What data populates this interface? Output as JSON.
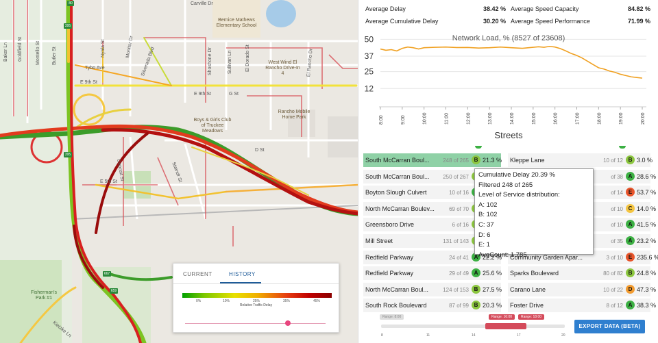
{
  "summary": {
    "average_delay_label": "Average Delay",
    "average_delay_value": "38.42 %",
    "average_cumulative_delay_label": "Average Cumulative Delay",
    "average_cumulative_delay_value": "30.20 %",
    "average_speed_capacity_label": "Average Speed Capacity",
    "average_speed_capacity_value": "84.82 %",
    "average_speed_performance_label": "Average Speed Performance",
    "average_speed_performance_value": "71.99 %"
  },
  "chart_data": {
    "type": "line",
    "title": "Network Load, % (8527 of 23608)",
    "y_ticks": [
      "50",
      "37",
      "25",
      "12"
    ],
    "ylim": [
      0,
      56
    ],
    "x_ticks": [
      "8:00",
      "9:00",
      "10:00",
      "11:00",
      "12:00",
      "13:00",
      "14:00",
      "15:00",
      "16:00",
      "17:00",
      "18:00",
      "19:00",
      "20:00"
    ],
    "series": [
      {
        "color": "#f0a020",
        "x": [
          8.0,
          8.25,
          8.5,
          8.75,
          9.0,
          9.25,
          9.5,
          9.75,
          10.0,
          10.5,
          11.0,
          11.5,
          12.0,
          12.5,
          13.0,
          13.5,
          14.0,
          14.5,
          15.0,
          15.25,
          15.5,
          15.75,
          16.0,
          16.25,
          16.5,
          16.75,
          17.0,
          17.25,
          17.5,
          17.75,
          18.0,
          18.25,
          18.5,
          18.75,
          19.0,
          19.25,
          19.5,
          19.75,
          20.0
        ],
        "values": [
          42.5,
          41.5,
          42.0,
          41.0,
          43.0,
          44.0,
          43.5,
          42.5,
          43.5,
          43.8,
          44.0,
          43.6,
          43.7,
          43.2,
          43.5,
          44.0,
          43.5,
          43.0,
          43.8,
          44.2,
          43.8,
          44.5,
          44.0,
          42.8,
          41.0,
          39.0,
          37.5,
          35.5,
          33.0,
          30.5,
          28.0,
          27.0,
          25.5,
          24.5,
          23.0,
          22.0,
          21.0,
          20.5,
          20.0
        ]
      }
    ]
  },
  "streets": {
    "title": "Streets",
    "left": [
      {
        "name": "South McCarran Boul...",
        "count": "248 of 265",
        "los": "B",
        "pct": "21.3 %"
      },
      {
        "name": "South McCarran Boul...",
        "count": "250 of 267",
        "los": "B",
        "pct": "21."
      },
      {
        "name": "Boyton Slough Culvert",
        "count": "10 of 16",
        "los": "A",
        "pct": "6."
      },
      {
        "name": "North McCarran Boulev...",
        "count": "69 of 70",
        "los": "B",
        "pct": "31."
      },
      {
        "name": "Greensboro Drive",
        "count": "6 of 16",
        "los": "B",
        "pct": "28."
      },
      {
        "name": "Mill Street",
        "count": "131 of 143",
        "los": "B",
        "pct": "28."
      },
      {
        "name": "Redfield Parkway",
        "count": "24 of 41",
        "los": "A",
        "pct": "22.2 %"
      },
      {
        "name": "Redfield Parkway",
        "count": "29 of 49",
        "los": "A",
        "pct": "25.6 %"
      },
      {
        "name": "North McCarran Boul...",
        "count": "124 of 153",
        "los": "B",
        "pct": "27.5 %"
      },
      {
        "name": "South Rock Boulevard",
        "count": "87 of 99",
        "los": "B",
        "pct": "20.3 %"
      }
    ],
    "right": [
      {
        "name": "Kleppe Lane",
        "count": "10 of 12",
        "los": "B",
        "pct": "3.0 %"
      },
      {
        "name": "",
        "count": "of 38",
        "los": "A",
        "pct": "28.6 %"
      },
      {
        "name": "",
        "count": "of 14",
        "los": "E",
        "pct": "53.7 %"
      },
      {
        "name": "",
        "count": "of 10",
        "los": "C",
        "pct": "14.0 %"
      },
      {
        "name": "",
        "count": "of 10",
        "los": "A",
        "pct": "41.5 %"
      },
      {
        "name": "",
        "count": "of 35",
        "los": "A",
        "pct": "23.2 %"
      },
      {
        "name": "Community Garden Apar...",
        "count": "3 of 10",
        "los": "E",
        "pct": "235.6 %"
      },
      {
        "name": "Sparks Boulevard",
        "count": "80 of 82",
        "los": "B",
        "pct": "24.8 %"
      },
      {
        "name": "Carano Lane",
        "count": "10 of 22",
        "los": "D",
        "pct": "47.3 %"
      },
      {
        "name": "Foster Drive",
        "count": "8 of 12",
        "los": "A",
        "pct": "38.3 %"
      }
    ]
  },
  "los_colors": {
    "A": "#3cb043",
    "B": "#8cc63f",
    "C": "#f4c542",
    "D": "#f29b30",
    "E": "#e8542a"
  },
  "tooltip": {
    "line1": "Cumulative Delay 20.39 %",
    "line2": "Filtered 248 of 265",
    "line3": "Level of Service distribution:",
    "line4": "A: 102",
    "line5": "B: 102",
    "line6": "C: 37",
    "line7": "D: 6",
    "line8": "E: 1",
    "line9": "AvgCount: 1.785"
  },
  "map": {
    "tab_current": "CURRENT",
    "tab_history": "HISTORY",
    "legend_ticks": [
      "0%",
      "10%",
      "25%",
      "35%",
      "45%"
    ],
    "legend_title": "Relative Traffic Delay",
    "slider_level": 0.73,
    "labels": {
      "carville": "Carville Dr",
      "school": "Bernice Mathews Elementary School",
      "drivein": "West Wind El Rancho Drive-In 4",
      "e9th": "E 9th St",
      "e9th2": "E 9th St",
      "gst": "G St",
      "boysgirls": "Boys & Girls Club of Truckee Meadows",
      "ranchomobile": "Rancho Mobile Home Park",
      "tybo": "Tybo Ave",
      "dst": "D St",
      "e5th": "E 5th St",
      "fishermans": "Fisherman's Park #1",
      "kietzke": "Kietzke Ln",
      "nyala": "Nyala St",
      "monitor": "Monitor Dr",
      "silverada": "Silverada Blvd",
      "shoshone": "Shoshone Dr",
      "sullivan": "Sullivan Ln",
      "elrancho": "El Rancho Dr",
      "eldorado": "El Dorado St",
      "butler": "Butler St",
      "montello": "Montello St",
      "goldfield": "Goldfield St",
      "baker": "Baker Ln",
      "deposit": "Deposit St",
      "staindr": "Staindr St"
    },
    "shields": [
      "80",
      "395",
      "395",
      "667",
      "659"
    ]
  },
  "range": {
    "pill_left": "Range: 8:00",
    "pill_start": "Range: 16:00",
    "pill_end": "Range: 18:00",
    "ticks": [
      "8",
      "11",
      "14",
      "17",
      "20"
    ],
    "export_label": "EXPORT DATA (BETA)"
  }
}
